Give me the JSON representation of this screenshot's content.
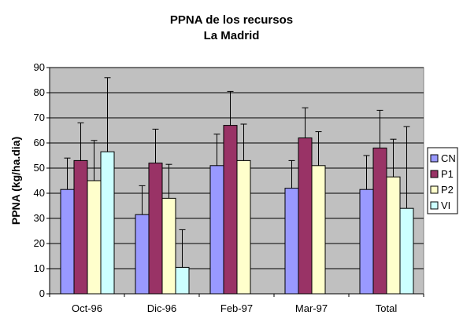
{
  "chart_data": {
    "type": "bar",
    "title": [
      "PPNA de los recursos",
      "La Madrid"
    ],
    "xlabel": "",
    "ylabel": "PPNA (kg/ha.dia)",
    "ylim": [
      0,
      90
    ],
    "yticks": [
      0,
      10,
      20,
      30,
      40,
      50,
      60,
      70,
      80,
      90
    ],
    "grid": true,
    "legend_position": "right",
    "plot_background": "#c0c0c0",
    "categories": [
      "Oct-96",
      "Dic-96",
      "Feb-97",
      "Mar-97",
      "Total"
    ],
    "series": [
      {
        "name": "CN",
        "color": "#9999ff",
        "values": [
          41.5,
          31.5,
          51,
          42,
          41.5
        ],
        "error": [
          12.5,
          11.5,
          12.5,
          11,
          13.5
        ]
      },
      {
        "name": "P1",
        "color": "#993366",
        "values": [
          53,
          52,
          67,
          62,
          58
        ],
        "error": [
          15,
          13.5,
          13.5,
          12,
          15
        ]
      },
      {
        "name": "P2",
        "color": "#ffffcc",
        "values": [
          45,
          38,
          53,
          51,
          46.5
        ],
        "error": [
          16,
          13.5,
          14.5,
          13.5,
          15
        ]
      },
      {
        "name": "VI",
        "color": "#ccffff",
        "values": [
          56.5,
          10.5,
          null,
          null,
          34
        ],
        "error": [
          29.5,
          15,
          null,
          null,
          32.5
        ]
      }
    ]
  }
}
